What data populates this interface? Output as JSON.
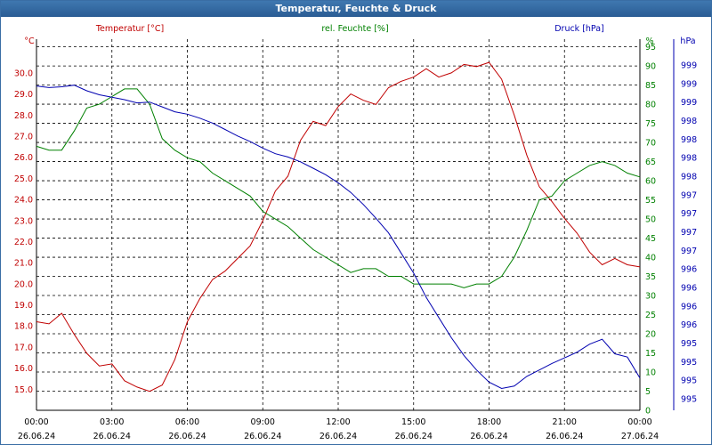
{
  "window": {
    "title": "Temperatur, Feuchte & Druck"
  },
  "legend": {
    "temperature": "Temperatur [°C]",
    "humidity": "rel. Feuchte [%]",
    "pressure": "Druck [hPa]"
  },
  "units": {
    "left": "°C",
    "right1": "%",
    "right2": "hPa"
  },
  "colors": {
    "temperature": "#c00000",
    "humidity": "#008000",
    "pressure": "#0000b0",
    "grid": "#000000"
  },
  "chart_data": {
    "type": "line",
    "title": "Temperatur, Feuchte & Druck",
    "grid": true,
    "x_ticks": [
      {
        "time": "00:00",
        "date": "26.06.24"
      },
      {
        "time": "03:00",
        "date": "26.06.24"
      },
      {
        "time": "06:00",
        "date": "26.06.24"
      },
      {
        "time": "09:00",
        "date": "26.06.24"
      },
      {
        "time": "12:00",
        "date": "26.06.24"
      },
      {
        "time": "15:00",
        "date": "26.06.24"
      },
      {
        "time": "18:00",
        "date": "26.06.24"
      },
      {
        "time": "21:00",
        "date": "26.06.24"
      },
      {
        "time": "00:00",
        "date": "27.06.24"
      }
    ],
    "x_hours": [
      0,
      0.5,
      1,
      1.5,
      2,
      2.5,
      3,
      3.5,
      4,
      4.5,
      5,
      5.5,
      6,
      6.5,
      7,
      7.5,
      8,
      8.5,
      9,
      9.5,
      10,
      10.5,
      11,
      11.5,
      12,
      12.5,
      13,
      13.5,
      14,
      14.5,
      15,
      15.5,
      16,
      16.5,
      17,
      17.5,
      18,
      18.5,
      19,
      19.5,
      20,
      20.5,
      21,
      21.5,
      22,
      22.5,
      23,
      23.5,
      24
    ],
    "y_temp_ticks": [
      "30.0",
      "29.0",
      "28.0",
      "27.0",
      "26.0",
      "25.0",
      "24.0",
      "23.0",
      "22.0",
      "21.0",
      "20.0",
      "19.0",
      "18.0",
      "17.0",
      "16.0",
      "15.0"
    ],
    "y_temp_range": [
      14.0,
      31.6
    ],
    "y_hum_ticks": [
      "95",
      "90",
      "85",
      "80",
      "75",
      "70",
      "65",
      "60",
      "55",
      "50",
      "45",
      "40",
      "35",
      "30",
      "25",
      "20",
      "15",
      "10",
      "5",
      "0"
    ],
    "y_hum_range": [
      0,
      97
    ],
    "y_press_ticks": [
      "999",
      "999",
      "999",
      "998",
      "998",
      "998",
      "998",
      "997",
      "997",
      "997",
      "997",
      "996",
      "996",
      "996",
      "996",
      "995",
      "995",
      "995",
      "995"
    ],
    "series": [
      {
        "name": "Temperatur [°C]",
        "axis": "temp",
        "values": [
          18.2,
          18.1,
          18.6,
          17.6,
          16.7,
          16.1,
          16.2,
          15.4,
          15.1,
          14.9,
          15.2,
          16.4,
          18.2,
          19.3,
          20.2,
          20.6,
          21.2,
          21.8,
          23.0,
          24.4,
          25.1,
          26.8,
          27.7,
          27.5,
          28.4,
          29.0,
          28.7,
          28.5,
          29.3,
          29.6,
          29.8,
          30.2,
          29.8,
          30.0,
          30.4,
          30.3,
          30.5,
          29.7,
          28.0,
          26.1,
          24.6,
          23.9,
          23.1,
          22.4,
          21.5,
          20.9,
          21.2,
          20.9,
          20.8
        ]
      },
      {
        "name": "rel. Feuchte [%]",
        "axis": "hum",
        "values": [
          69,
          68,
          68,
          73,
          79,
          80,
          82,
          84,
          84,
          80,
          71,
          68,
          66,
          65,
          62,
          60,
          58,
          56,
          52,
          50,
          48,
          45,
          42,
          40,
          38,
          36,
          37,
          37,
          35,
          35,
          33,
          33,
          33,
          33,
          32,
          33,
          33,
          35,
          40,
          47,
          55,
          56,
          60,
          62,
          64,
          65,
          64,
          62,
          61
        ]
      }
    ]
  }
}
